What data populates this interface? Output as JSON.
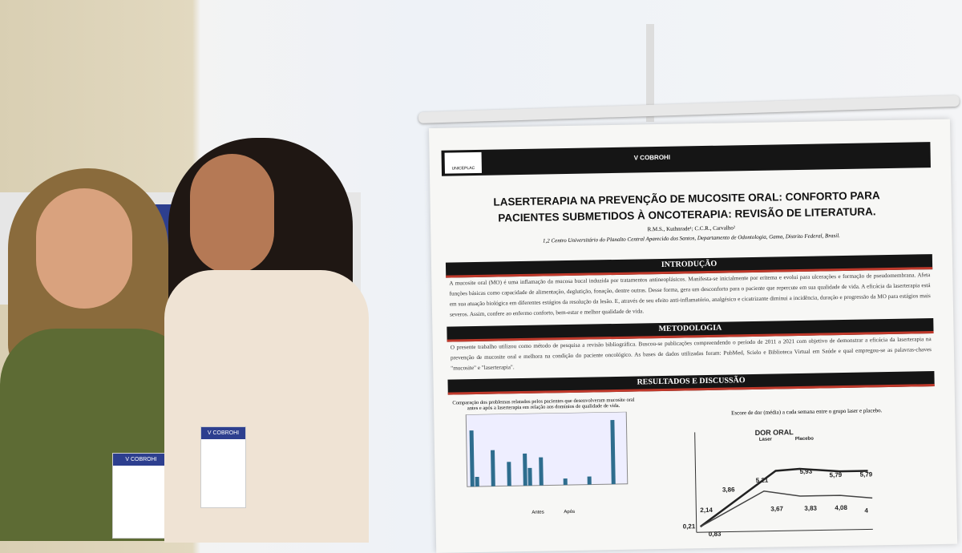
{
  "poster": {
    "logo_left": "UNICEPLAC",
    "banner": "V COBROHI",
    "title": "LASERTERAPIA NA PREVENÇÃO DE MUCOSITE ORAL: CONFORTO PARA PACIENTES SUBMETIDOS À ONCOTERAPIA: REVISÃO DE LITERATURA.",
    "authors": "R.M.S., Kuthnrade¹; C.C.R., Carvalho²",
    "affiliation": "1,2 Centro Universitário do Planalto Central Aparecido dos Santos, Departamento de Odontologia, Gama, Distrito Federal, Brasil.",
    "sections": [
      {
        "heading": "INTRODUÇÃO",
        "text": "A mucosite oral (MO) é uma inflamação da mucosa bucal induzida por tratamentos antineoplásicos. Manifesta-se inicialmente por eritema e evolui para ulcerações e formação de pseudomembrana. Afeta funções básicas como capacidade de alimentação, deglutição, fonação, dentre outras. Desse forma, gera um desconforto para o paciente que repercute em sua qualidade de vida. A eficácia da laserterapia está em sua atuação biológica em diferentes estágios da resolução da lesão. E, através de seu efeito anti-inflamatório, analgésico e cicatrizante diminui a incidência, duração e progressão da MO para estágios mais severos. Assim, confere ao enfermo conforto, bem-estar e melhor qualidade de vida."
      },
      {
        "heading": "METODOLOGIA",
        "text": "O presente trabalho utilizou como método de pesquisa a revisão bibliográfica. Buscou-se publicações compreendendo o período de 2011 a 2021 com objetivo de demonstrar a eficácia da laserterapia na prevenção de mucosite oral e melhora na condição do paciente oncológico. As bases de dados utilizadas foram: PubMed, Scielo e Biblioteca Virtual em Saúde e qual empregou-se as palavras-chaves \"mucosite\" e \"laserterapia\"."
      },
      {
        "heading": "RESULTADOS E DISCUSSÃO"
      }
    ],
    "figure1_caption": "Comparação dos problemas relatados pelos pacientes que desenvolveram mucosite oral antes e após a laserterapia em relação aos domínios de qualidade de vida.",
    "figure1_legend": [
      "Antes",
      "Após"
    ],
    "figure2_caption": "Escore de dor (média) a cada semana entre o grupo laser e placebo.",
    "figure2_title": "DOR ORAL",
    "figure2_legend": [
      "Laser",
      "Placebo"
    ],
    "figure2_labels": [
      "5,21",
      "5,93",
      "5,79",
      "5,79",
      "3,86",
      "2,14",
      "0,21",
      "0,83",
      "3,67",
      "3,83",
      "4,08",
      "4"
    ]
  },
  "badges": {
    "left": "V COBROHI",
    "right": "V COBROHI"
  }
}
